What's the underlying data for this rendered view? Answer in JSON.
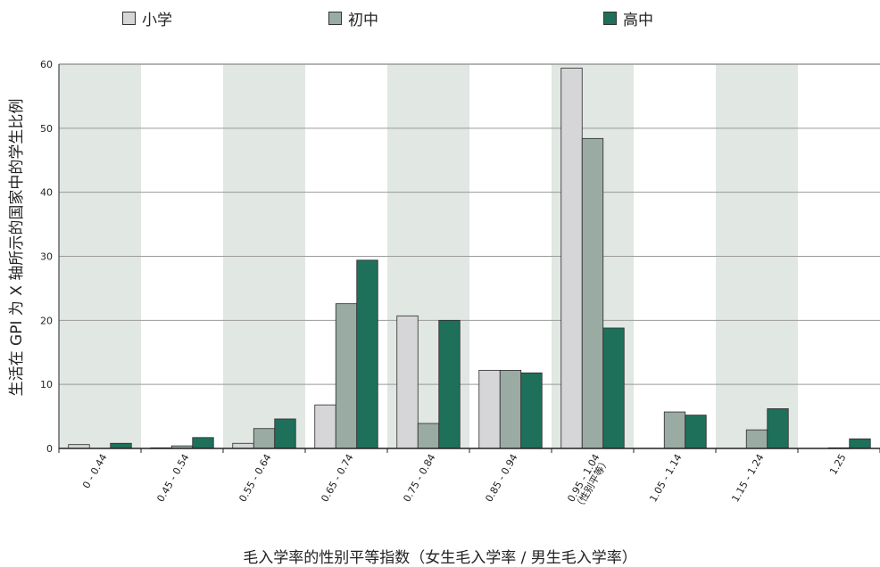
{
  "chart_data": {
    "type": "bar",
    "categories": [
      "0 - 0.44",
      "0.45 - 0.54",
      "0.55 - 0.64",
      "0.65 - 0.74",
      "0.75 - 0.84",
      "0.85 - 0.94",
      "0.95 - 1.04",
      "1.05 - 1.14",
      "1.15 - 1.24",
      "1.25"
    ],
    "category_sublabels": [
      "",
      "",
      "",
      "",
      "",
      "",
      "（性别平等）",
      "",
      "",
      ""
    ],
    "series": [
      {
        "name": "小学",
        "color": "#d6d6d8",
        "values": [
          0.6,
          0.1,
          0.8,
          6.8,
          20.7,
          12.2,
          59.4,
          0,
          0,
          0
        ]
      },
      {
        "name": "初中",
        "color": "#9aaba3",
        "values": [
          0,
          0.4,
          3.1,
          22.6,
          3.9,
          12.2,
          48.4,
          5.7,
          2.9,
          0.1
        ]
      },
      {
        "name": "高中",
        "color": "#1e705a",
        "values": [
          0.8,
          1.7,
          4.6,
          29.4,
          20.0,
          11.8,
          18.8,
          5.2,
          6.2,
          1.5
        ]
      }
    ],
    "title": "",
    "xlabel": "毛入学率的性别平等指数（女生毛入学率 / 男生毛入学率）",
    "ylabel": "生活在 GPI 为 X 轴所示的国家中的学生比例",
    "ylim": [
      0,
      60
    ],
    "yticks": [
      0,
      10,
      20,
      30,
      40,
      50,
      60
    ],
    "grid": true,
    "legend_position": "top",
    "band_color": "#e1e7e3",
    "grid_color": "#9a9a9a"
  }
}
